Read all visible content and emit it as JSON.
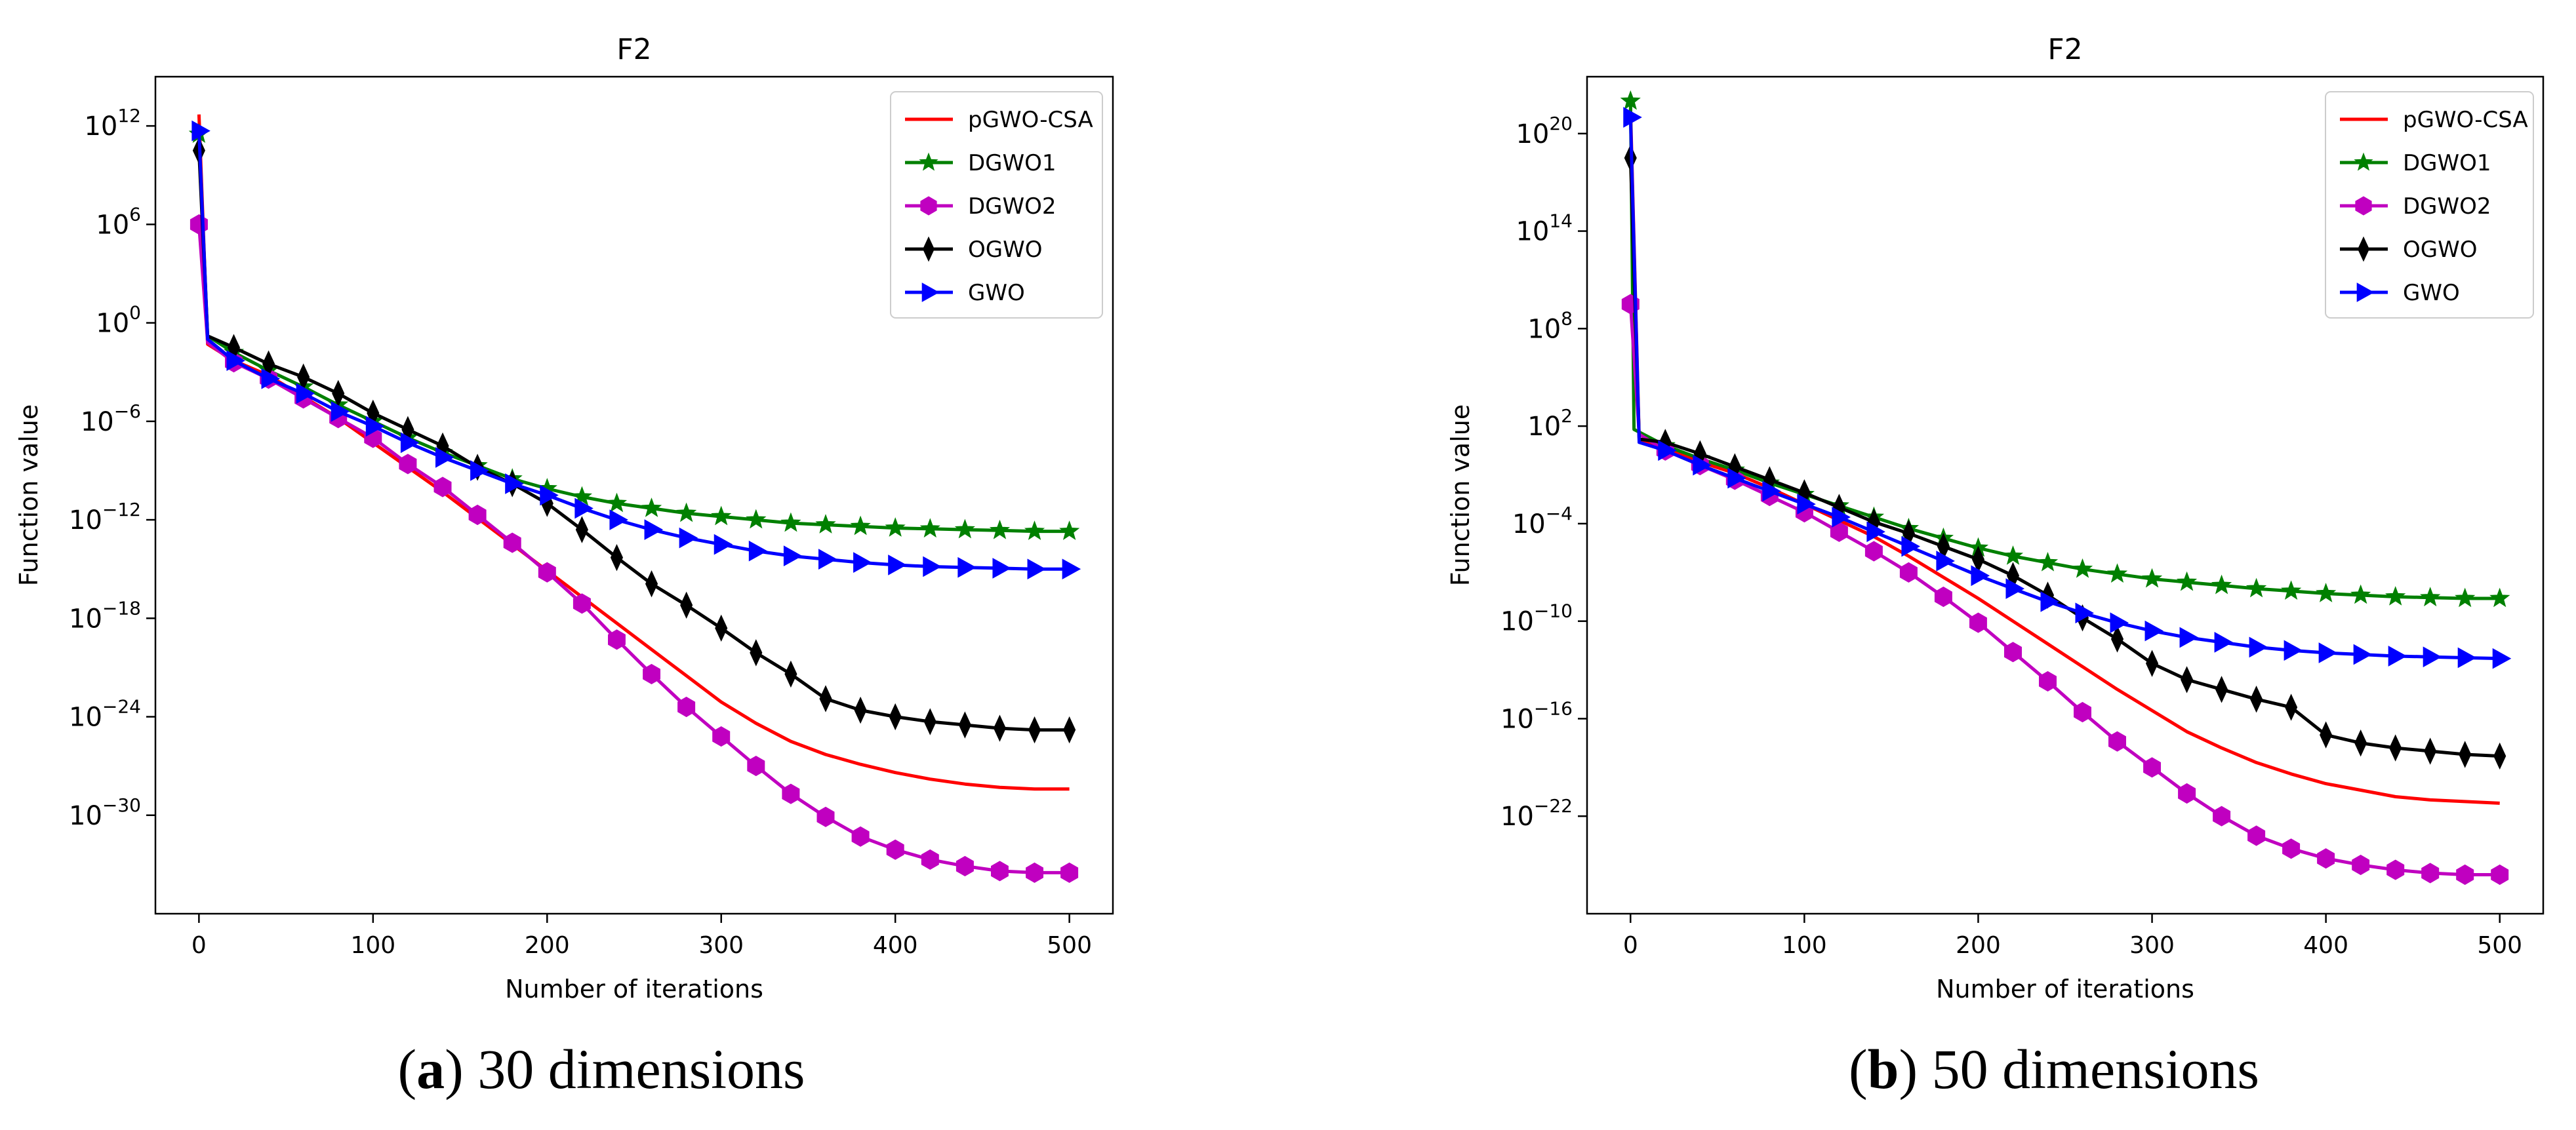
{
  "figure": {
    "panels": [
      {
        "caption_letter": "a",
        "caption_text": " 30 dimensions"
      },
      {
        "caption_letter": "b",
        "caption_text": " 50 dimensions"
      }
    ]
  },
  "chart_data": [
    {
      "type": "line",
      "title": "F2",
      "xlabel": "Number of iterations",
      "ylabel": "Function value",
      "xlim": [
        -25,
        525
      ],
      "xticks": [
        0,
        100,
        200,
        300,
        400,
        500
      ],
      "y_scale": "log",
      "ylim_log10": [
        -36,
        15
      ],
      "yticks": [
        {
          "exp": 12,
          "base": "10",
          "sup": "12"
        },
        {
          "exp": 6,
          "base": "10",
          "sup": "6"
        },
        {
          "exp": 0,
          "base": "10",
          "sup": "0"
        },
        {
          "exp": -6,
          "base": "10",
          "sup": "−6"
        },
        {
          "exp": -12,
          "base": "10",
          "sup": "−12"
        },
        {
          "exp": -18,
          "base": "10",
          "sup": "−18"
        },
        {
          "exp": -24,
          "base": "10",
          "sup": "−24"
        },
        {
          "exp": -30,
          "base": "10",
          "sup": "−30"
        }
      ],
      "grid": false,
      "legend_position": "top-right",
      "series": [
        {
          "name": "pGWO-CSA",
          "color": "#ff0000",
          "marker": "none",
          "x": [
            0,
            5,
            20,
            40,
            60,
            80,
            100,
            120,
            140,
            160,
            180,
            200,
            220,
            240,
            260,
            280,
            300,
            320,
            340,
            360,
            380,
            400,
            420,
            440,
            460,
            480,
            500
          ],
          "log10_y": [
            12.7,
            -1.3,
            -2.3,
            -3.2,
            -4.5,
            -5.8,
            -7.3,
            -8.8,
            -10.3,
            -11.9,
            -13.5,
            -15.1,
            -16.7,
            -18.3,
            -19.9,
            -21.5,
            -23.1,
            -24.4,
            -25.5,
            -26.3,
            -26.9,
            -27.4,
            -27.8,
            -28.1,
            -28.3,
            -28.4,
            -28.4
          ]
        },
        {
          "name": "DGWO1",
          "color": "#008000",
          "marker": "star",
          "x": [
            0,
            5,
            20,
            40,
            60,
            80,
            100,
            120,
            140,
            160,
            180,
            200,
            220,
            240,
            260,
            280,
            300,
            320,
            340,
            360,
            380,
            400,
            420,
            440,
            460,
            480,
            500
          ],
          "log10_y": [
            11.5,
            -0.8,
            -1.8,
            -2.9,
            -3.9,
            -5.0,
            -6.0,
            -7.0,
            -7.9,
            -8.7,
            -9.5,
            -10.1,
            -10.6,
            -11.0,
            -11.3,
            -11.6,
            -11.8,
            -12.0,
            -12.2,
            -12.3,
            -12.4,
            -12.5,
            -12.55,
            -12.6,
            -12.65,
            -12.7,
            -12.7
          ]
        },
        {
          "name": "DGWO2",
          "color": "#c000c0",
          "marker": "hexagon",
          "x": [
            0,
            5,
            20,
            40,
            60,
            80,
            100,
            120,
            140,
            160,
            180,
            200,
            220,
            240,
            260,
            280,
            300,
            320,
            340,
            360,
            380,
            400,
            420,
            440,
            460,
            480,
            500
          ],
          "log10_y": [
            6.0,
            -1.2,
            -2.4,
            -3.4,
            -4.6,
            -5.8,
            -7.0,
            -8.6,
            -10.0,
            -11.7,
            -13.4,
            -15.2,
            -17.1,
            -19.3,
            -21.4,
            -23.4,
            -25.2,
            -27.0,
            -28.7,
            -30.1,
            -31.3,
            -32.1,
            -32.7,
            -33.1,
            -33.4,
            -33.5,
            -33.5
          ]
        },
        {
          "name": "OGWO",
          "color": "#000000",
          "marker": "thin-diamond",
          "x": [
            0,
            5,
            20,
            40,
            60,
            80,
            100,
            120,
            140,
            160,
            180,
            200,
            220,
            240,
            260,
            280,
            300,
            320,
            340,
            360,
            380,
            400,
            420,
            440,
            460,
            480,
            500
          ],
          "log10_y": [
            10.5,
            -0.8,
            -1.5,
            -2.5,
            -3.3,
            -4.3,
            -5.5,
            -6.5,
            -7.5,
            -8.8,
            -9.8,
            -11.0,
            -12.6,
            -14.3,
            -15.9,
            -17.2,
            -18.6,
            -20.1,
            -21.4,
            -22.9,
            -23.6,
            -24.0,
            -24.3,
            -24.5,
            -24.7,
            -24.8,
            -24.8
          ]
        },
        {
          "name": "GWO",
          "color": "#0000ff",
          "marker": "triangle-right",
          "x": [
            0,
            5,
            20,
            40,
            60,
            80,
            100,
            120,
            140,
            160,
            180,
            200,
            220,
            240,
            260,
            280,
            300,
            320,
            340,
            360,
            380,
            400,
            420,
            440,
            460,
            480,
            500
          ],
          "log10_y": [
            11.7,
            -1.0,
            -2.3,
            -3.4,
            -4.3,
            -5.4,
            -6.3,
            -7.3,
            -8.2,
            -9.0,
            -9.8,
            -10.5,
            -11.3,
            -12.0,
            -12.6,
            -13.1,
            -13.5,
            -13.9,
            -14.2,
            -14.4,
            -14.6,
            -14.75,
            -14.85,
            -14.9,
            -14.95,
            -15.0,
            -15.0
          ]
        }
      ]
    },
    {
      "type": "line",
      "title": "F2",
      "xlabel": "Number of iterations",
      "ylabel": "Function value",
      "xlim": [
        -25,
        525
      ],
      "xticks": [
        0,
        100,
        200,
        300,
        400,
        500
      ],
      "y_scale": "log",
      "ylim_log10": [
        -28,
        23.5
      ],
      "yticks": [
        {
          "exp": 20,
          "base": "10",
          "sup": "20"
        },
        {
          "exp": 14,
          "base": "10",
          "sup": "14"
        },
        {
          "exp": 8,
          "base": "10",
          "sup": "8"
        },
        {
          "exp": 2,
          "base": "10",
          "sup": "2"
        },
        {
          "exp": -4,
          "base": "10",
          "sup": "−4"
        },
        {
          "exp": -10,
          "base": "10",
          "sup": "−10"
        },
        {
          "exp": -16,
          "base": "10",
          "sup": "−16"
        },
        {
          "exp": -22,
          "base": "10",
          "sup": "−22"
        }
      ],
      "grid": false,
      "legend_position": "top-right",
      "series": [
        {
          "name": "pGWO-CSA",
          "color": "#ff0000",
          "marker": "none",
          "x": [
            0,
            5,
            20,
            40,
            60,
            80,
            100,
            120,
            140,
            160,
            180,
            200,
            220,
            240,
            260,
            280,
            300,
            320,
            340,
            360,
            380,
            400,
            420,
            440,
            460,
            480,
            500
          ],
          "log10_y": [
            21.5,
            1.2,
            0.6,
            -0.2,
            -0.9,
            -1.8,
            -2.8,
            -3.8,
            -4.8,
            -6.0,
            -7.3,
            -8.6,
            -10.0,
            -11.4,
            -12.8,
            -14.2,
            -15.5,
            -16.8,
            -17.8,
            -18.7,
            -19.4,
            -20.0,
            -20.4,
            -20.8,
            -21.0,
            -21.1,
            -21.2
          ]
        },
        {
          "name": "DGWO1",
          "color": "#008000",
          "marker": "star",
          "x": [
            0,
            2,
            20,
            40,
            60,
            80,
            100,
            120,
            140,
            160,
            180,
            200,
            220,
            240,
            260,
            280,
            300,
            320,
            340,
            360,
            380,
            400,
            420,
            440,
            460,
            480,
            500
          ],
          "log10_y": [
            22.0,
            1.8,
            0.8,
            0.0,
            -0.7,
            -1.5,
            -2.2,
            -2.9,
            -3.6,
            -4.3,
            -4.9,
            -5.5,
            -6.0,
            -6.4,
            -6.8,
            -7.1,
            -7.4,
            -7.6,
            -7.8,
            -8.0,
            -8.15,
            -8.3,
            -8.4,
            -8.5,
            -8.55,
            -8.6,
            -8.6
          ]
        },
        {
          "name": "DGWO2",
          "color": "#c000c0",
          "marker": "hexagon",
          "x": [
            0,
            5,
            20,
            40,
            60,
            80,
            100,
            120,
            140,
            160,
            180,
            200,
            220,
            240,
            260,
            280,
            300,
            320,
            340,
            360,
            380,
            400,
            420,
            440,
            460,
            480,
            500
          ],
          "log10_y": [
            9.5,
            1.5,
            0.5,
            -0.4,
            -1.3,
            -2.3,
            -3.3,
            -4.5,
            -5.7,
            -7.0,
            -8.5,
            -10.1,
            -11.9,
            -13.7,
            -15.6,
            -17.4,
            -19.0,
            -20.6,
            -22.0,
            -23.2,
            -24.0,
            -24.6,
            -25.0,
            -25.3,
            -25.5,
            -25.6,
            -25.6
          ]
        },
        {
          "name": "OGWO",
          "color": "#000000",
          "marker": "thin-diamond",
          "x": [
            0,
            5,
            20,
            40,
            60,
            80,
            100,
            120,
            140,
            160,
            180,
            200,
            220,
            240,
            260,
            280,
            300,
            320,
            340,
            360,
            380,
            400,
            420,
            440,
            460,
            480,
            500
          ],
          "log10_y": [
            18.5,
            1.2,
            1.0,
            0.3,
            -0.5,
            -1.3,
            -2.1,
            -3.0,
            -3.9,
            -4.6,
            -5.4,
            -6.2,
            -7.2,
            -8.4,
            -9.8,
            -11.1,
            -12.6,
            -13.6,
            -14.2,
            -14.8,
            -15.3,
            -17.0,
            -17.5,
            -17.8,
            -18.0,
            -18.2,
            -18.3
          ]
        },
        {
          "name": "GWO",
          "color": "#0000ff",
          "marker": "triangle-right",
          "x": [
            0,
            5,
            20,
            40,
            60,
            80,
            100,
            120,
            140,
            160,
            180,
            200,
            220,
            240,
            260,
            280,
            300,
            320,
            340,
            360,
            380,
            400,
            420,
            440,
            460,
            480,
            500
          ],
          "log10_y": [
            21.0,
            1.0,
            0.5,
            -0.4,
            -1.2,
            -2.0,
            -2.8,
            -3.6,
            -4.5,
            -5.4,
            -6.3,
            -7.2,
            -8.0,
            -8.8,
            -9.5,
            -10.1,
            -10.6,
            -11.0,
            -11.3,
            -11.6,
            -11.8,
            -11.95,
            -12.05,
            -12.15,
            -12.2,
            -12.25,
            -12.3
          ]
        }
      ]
    }
  ]
}
